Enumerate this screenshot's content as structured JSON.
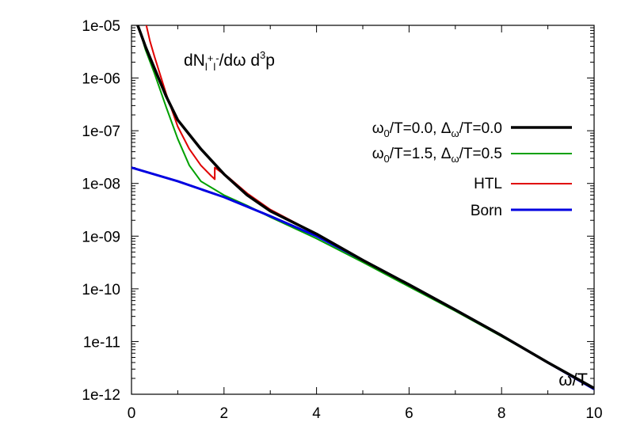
{
  "chart_data": {
    "type": "line",
    "title_parts": {
      "main": "dN",
      "sub": "l",
      "sup1": "+",
      "sub2": "l",
      "sup2": "-",
      "rest1": "/dω d",
      "sup3": "3",
      "rest2": "p"
    },
    "xlabel": "ω/T",
    "ylabel": "",
    "xlim": [
      0,
      10
    ],
    "ylim": [
      1e-12,
      1e-05
    ],
    "yscale": "log",
    "xticks": [
      0,
      2,
      4,
      6,
      8,
      10
    ],
    "xtick_labels": [
      "0",
      "2",
      "4",
      "6",
      "8",
      "10"
    ],
    "yticks": [
      1e-12,
      1e-11,
      1e-10,
      1e-09,
      1e-08,
      1e-07,
      1e-06,
      1e-05
    ],
    "ytick_labels": [
      "1e-12",
      "1e-11",
      "1e-10",
      "1e-09",
      "1e-08",
      "1e-07",
      "1e-06",
      "1e-05"
    ],
    "grid": false,
    "legend_position": "right",
    "series": [
      {
        "name": "ω0/T=0.0, Δω/T=0.0",
        "name_parts": [
          "ω",
          "0",
          "/T=0.0, Δ",
          "ω",
          "/T=0.0"
        ],
        "color": "#000000",
        "x": [
          0.1,
          0.2,
          0.3,
          0.5,
          0.75,
          1.0,
          1.5,
          2.0,
          2.5,
          3.0,
          4.0,
          5.0,
          6.0,
          7.0,
          8.0,
          9.0,
          10.0
        ],
        "y": [
          1.2e-05,
          7e-06,
          4e-06,
          1.5e-06,
          4.5e-07,
          1.6e-07,
          4.5e-08,
          1.5e-08,
          6e-09,
          3e-09,
          1.1e-09,
          3.5e-10,
          1.2e-10,
          4e-11,
          1.3e-11,
          4e-12,
          1.3e-12
        ]
      },
      {
        "name": "ω0/T=1.5, Δω/T=0.5",
        "name_parts": [
          "ω",
          "0",
          "/T=1.5, Δ",
          "ω",
          "/T=0.5"
        ],
        "color": "#00a000",
        "x": [
          0.1,
          0.2,
          0.3,
          0.5,
          0.75,
          1.0,
          1.25,
          1.5,
          2.0,
          2.5,
          3.0,
          4.0,
          5.0,
          6.0,
          7.0,
          8.0,
          9.0,
          10.0
        ],
        "y": [
          1.2e-05,
          7e-06,
          3.5e-06,
          1.2e-06,
          2.8e-07,
          7e-08,
          2.2e-08,
          1.1e-08,
          6e-09,
          3.8e-09,
          2.3e-09,
          9e-10,
          3.2e-10,
          1.1e-10,
          3.8e-11,
          1.25e-11,
          4e-12,
          1.3e-12
        ]
      },
      {
        "name": "HTL",
        "color": "#e00000",
        "x": [
          0.3,
          0.4,
          0.5,
          0.75,
          1.0,
          1.25,
          1.5,
          1.72,
          1.78,
          1.8,
          1.8,
          1.95,
          2.1,
          2.5,
          3.0,
          4.0,
          5.0,
          6.0,
          7.0,
          8.0,
          9.0,
          10.0
        ],
        "y": [
          1.2e-05,
          5e-06,
          2.5e-06,
          5e-07,
          1.2e-07,
          4.5e-08,
          2.2e-08,
          1.4e-08,
          1.25e-08,
          1.2e-08,
          2e-08,
          1.6e-08,
          1.3e-08,
          6.5e-09,
          3.2e-09,
          1.1e-09,
          3.5e-10,
          1.2e-10,
          4e-11,
          1.3e-11,
          4e-12,
          1.3e-12
        ]
      },
      {
        "name": "Born",
        "color": "#0000e0",
        "x": [
          0,
          1,
          2,
          3,
          4,
          5,
          6,
          7,
          8,
          9,
          10
        ],
        "y": [
          2e-08,
          1.1e-08,
          5.5e-09,
          2.4e-09,
          1e-09,
          3.5e-10,
          1.2e-10,
          4e-11,
          1.3e-11,
          4e-12,
          1.25e-12
        ]
      }
    ]
  }
}
